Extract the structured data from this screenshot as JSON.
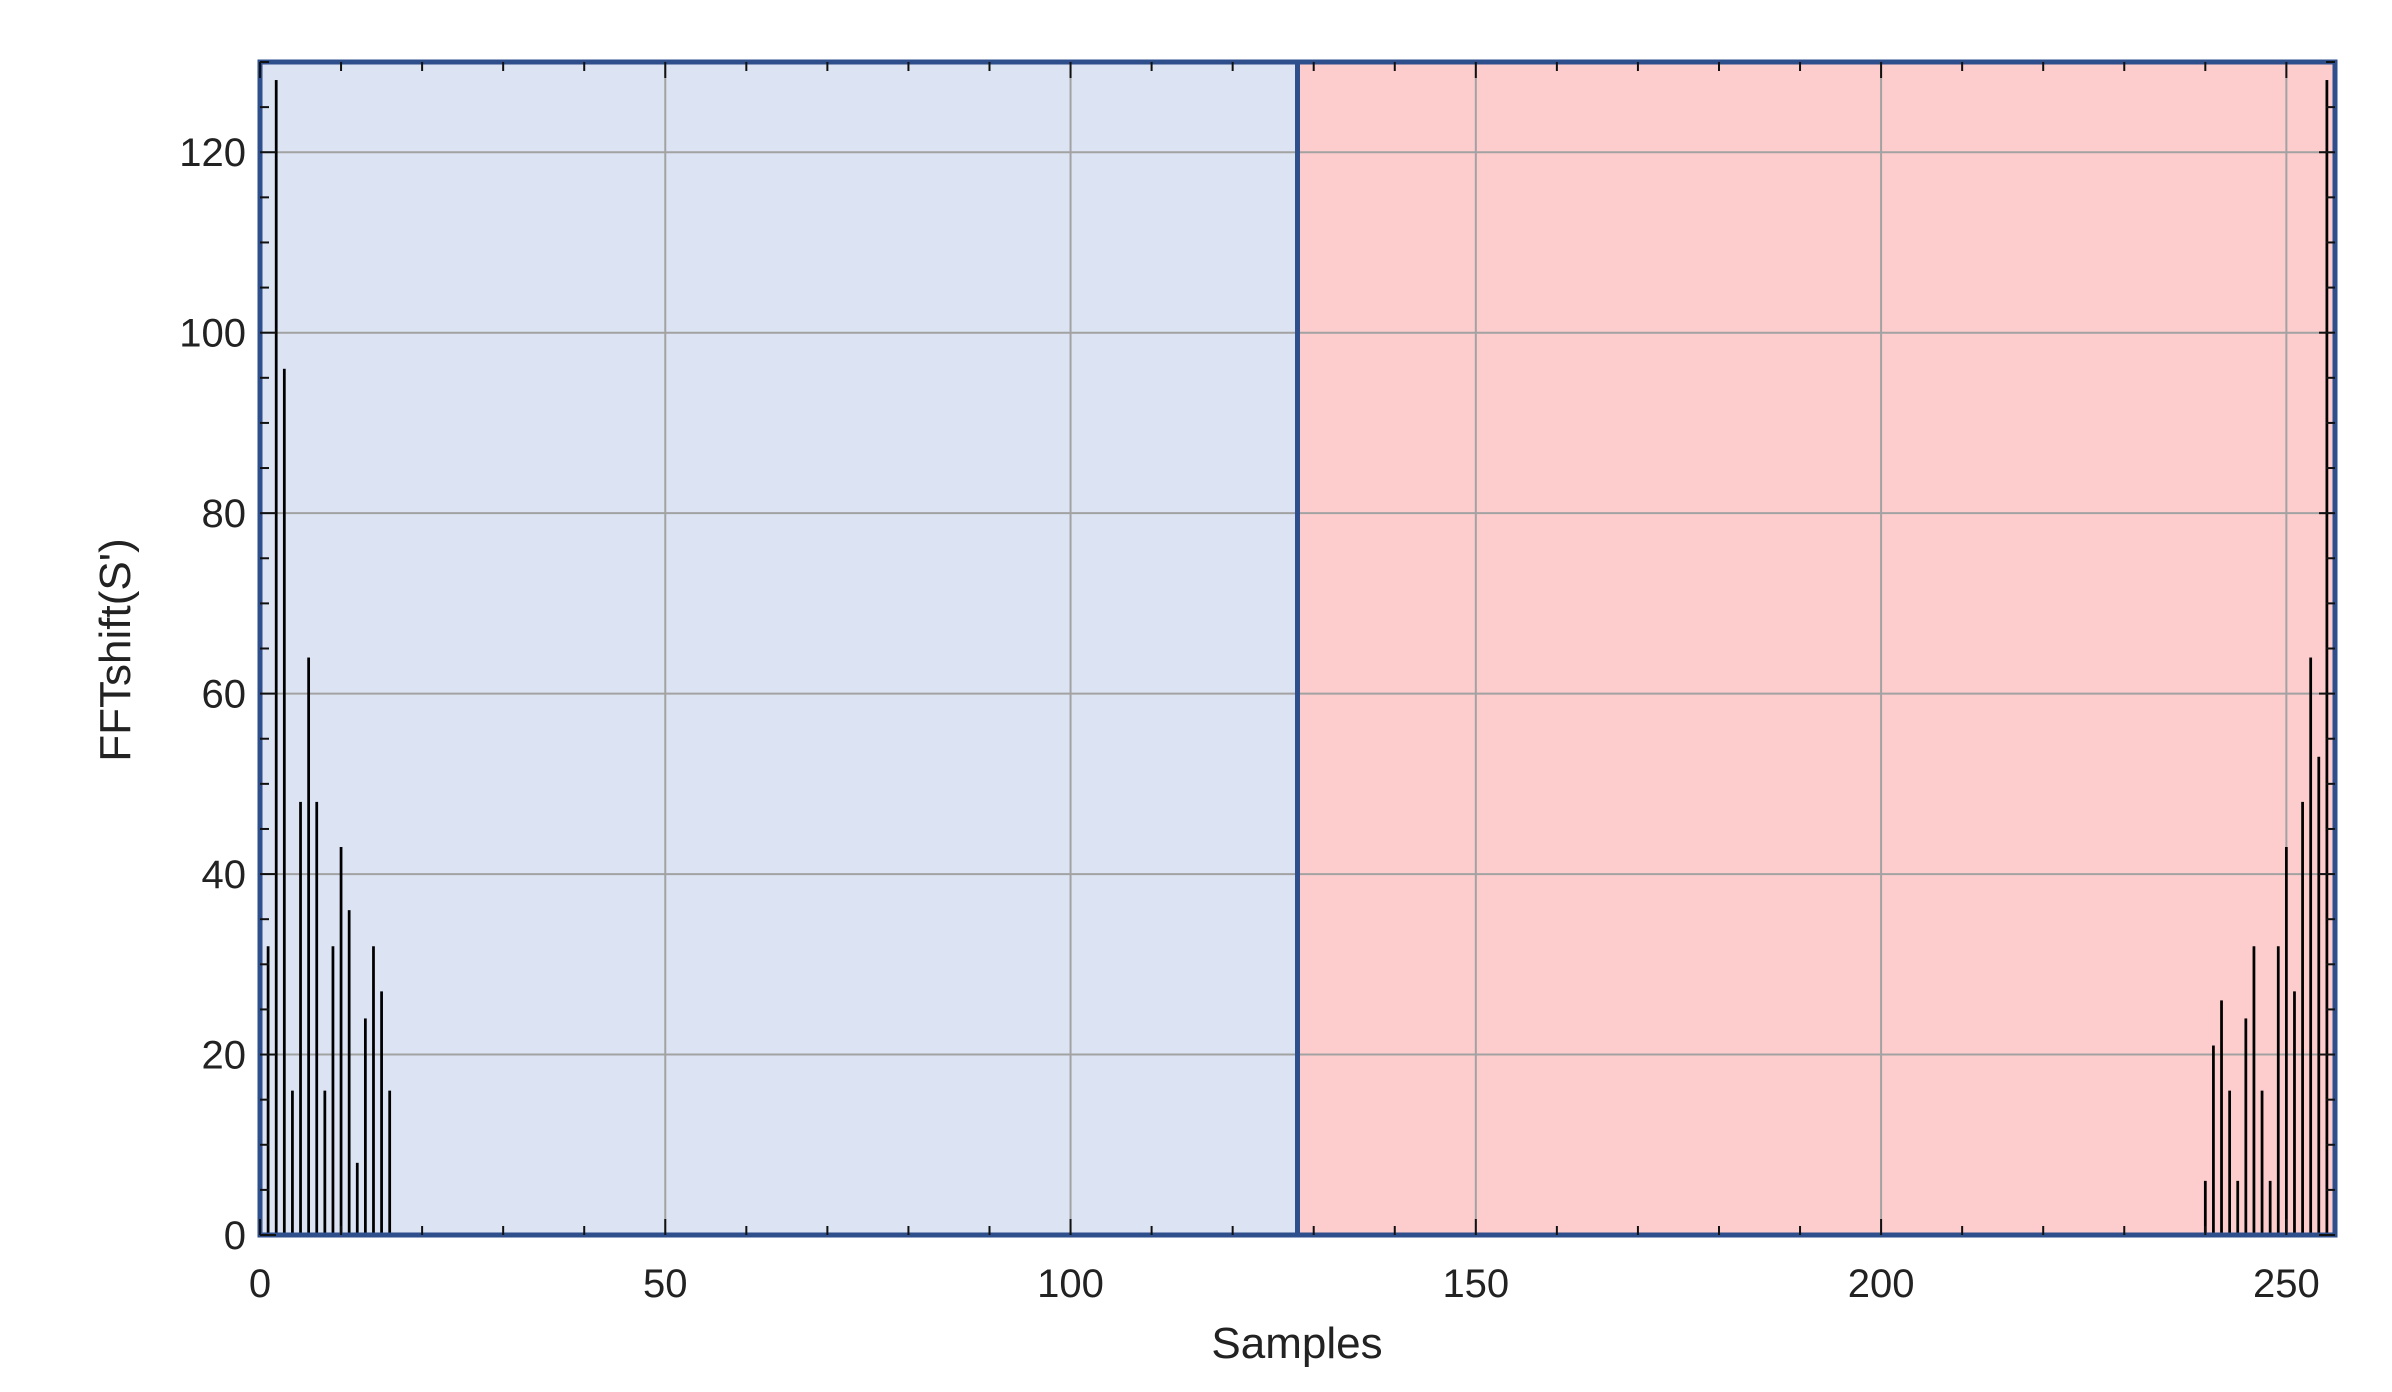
{
  "chart_data": {
    "type": "bar",
    "title": "",
    "xlabel": "Samples",
    "ylabel": "FFTshift(S')",
    "xlim": [
      0,
      256
    ],
    "ylim": [
      0,
      130
    ],
    "xticks": [
      0,
      50,
      100,
      150,
      200,
      250
    ],
    "yticks": [
      0,
      20,
      40,
      60,
      80,
      100,
      120
    ],
    "x_minor_step": 10,
    "y_minor_step": 5,
    "grid": true,
    "regions": [
      {
        "x_start": 0,
        "x_end": 128,
        "color": "#dce4f3"
      },
      {
        "x_start": 128,
        "x_end": 256,
        "color": "#fdcdcd"
      }
    ],
    "divider_x": 128,
    "frame_color": "#2e4e8c",
    "bar_color": "#000000",
    "x": [
      1,
      2,
      3,
      4,
      5,
      6,
      7,
      8,
      9,
      10,
      11,
      12,
      13,
      14,
      15,
      16,
      240,
      241,
      242,
      243,
      244,
      245,
      246,
      247,
      248,
      249,
      250,
      251,
      252,
      253,
      254,
      255
    ],
    "values": [
      32,
      128,
      96,
      16,
      48,
      64,
      48,
      16,
      32,
      43,
      36,
      8,
      24,
      32,
      27,
      16,
      6,
      21,
      26,
      16,
      6,
      24,
      32,
      16,
      6,
      32,
      43,
      27,
      48,
      64,
      53,
      128
    ]
  }
}
